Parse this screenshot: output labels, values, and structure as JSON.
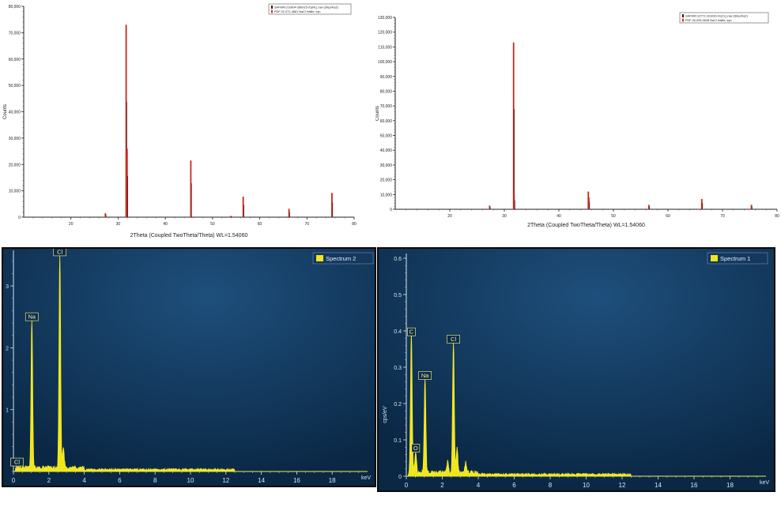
{
  "chart_data": [
    {
      "type": "line",
      "kind": "xrd",
      "ylabel": "Counts",
      "xlabel": "2Theta (Coupled TwoTheta/Theta) WL=1.54060",
      "xlim": [
        10,
        80
      ],
      "ylim": [
        0,
        80000
      ],
      "xticks": [
        20,
        30,
        40,
        50,
        60,
        70,
        80
      ],
      "yticks": [
        0,
        10000,
        20000,
        30000,
        40000,
        50000,
        60000,
        70000,
        80000
      ],
      "ytick_labels": [
        "0",
        "10,000",
        "20,000",
        "30,000",
        "40,000",
        "50,000",
        "60,000",
        "70,000",
        "80,000"
      ],
      "legend": [
        "SAFWR-210904-280915-01(RL).raw (Step/Ka2)",
        "PDF 01-071-4661 NaCl Halite, syn"
      ],
      "legend_colors": [
        "#4a0d0d",
        "#d23a2a"
      ],
      "peaks": [
        [
          27.3,
          1500
        ],
        [
          31.7,
          73000
        ],
        [
          31.9,
          26000
        ],
        [
          45.4,
          21500
        ],
        [
          53.9,
          500
        ],
        [
          56.5,
          7800
        ],
        [
          66.2,
          3200
        ],
        [
          75.3,
          9200
        ]
      ]
    },
    {
      "type": "line",
      "kind": "xrd",
      "ylabel": "Counts",
      "xlabel": "2Theta (Coupled TwoTheta/Theta) WL=1.54060",
      "xlim": [
        10,
        80
      ],
      "ylim": [
        0,
        130000
      ],
      "xticks": [
        20,
        30,
        40,
        50,
        60,
        70,
        80
      ],
      "yticks": [
        0,
        10000,
        20000,
        30000,
        40000,
        50000,
        60000,
        70000,
        80000,
        90000,
        100000,
        110000,
        120000,
        130000
      ],
      "ytick_labels": [
        "0",
        "10,000",
        "20,000",
        "30,000",
        "40,000",
        "50,000",
        "60,000",
        "70,000",
        "80,000",
        "90,000",
        "100,000",
        "110,000",
        "120,000",
        "130,000"
      ],
      "legend": [
        "SAFWR-12771-241030-01(CL).raw (Step/Ka2)",
        "PDF 00-005-0628 NaCl Halite, syn"
      ],
      "legend_colors": [
        "#4a0d0d",
        "#d23a2a"
      ],
      "peaks": [
        [
          27.3,
          2500
        ],
        [
          31.7,
          113000
        ],
        [
          31.8,
          10000
        ],
        [
          45.4,
          12000
        ],
        [
          45.5,
          8000
        ],
        [
          56.5,
          3000
        ],
        [
          66.2,
          7000
        ],
        [
          75.3,
          3000
        ]
      ]
    },
    {
      "type": "line",
      "kind": "eds",
      "legend": "Spectrum 2",
      "xlabel": "keV",
      "xlim": [
        0,
        20
      ],
      "ylim": [
        0,
        3.5
      ],
      "xticks": [
        0,
        2,
        4,
        6,
        8,
        10,
        12,
        14,
        16,
        18
      ],
      "yticks": [
        1,
        2,
        3
      ],
      "peaks": [
        [
          1.04,
          2.4
        ],
        [
          2.62,
          3.45
        ],
        [
          2.82,
          0.35
        ]
      ],
      "labels": [
        {
          "text": "Na",
          "x": 1.04,
          "y": 2.4
        },
        {
          "text": "Cl",
          "x": 2.62,
          "y": 3.45
        },
        {
          "text": "Cl",
          "x": 0.2,
          "y": 0.05
        }
      ]
    },
    {
      "type": "line",
      "kind": "eds",
      "legend": "Spectrum 1",
      "xlabel": "keV",
      "ylabel": "cps/eV",
      "xlim": [
        0,
        20
      ],
      "ylim": [
        0,
        0.6
      ],
      "xticks": [
        0,
        2,
        4,
        6,
        8,
        10,
        12,
        14,
        16,
        18
      ],
      "yticks": [
        0,
        0.1,
        0.2,
        0.3,
        0.4,
        0.5,
        0.6
      ],
      "peaks": [
        [
          0.28,
          0.38
        ],
        [
          0.52,
          0.06
        ],
        [
          1.04,
          0.26
        ],
        [
          2.62,
          0.36
        ],
        [
          2.82,
          0.07
        ],
        [
          3.3,
          0.03
        ],
        [
          2.3,
          0.03
        ]
      ],
      "labels": [
        {
          "text": "C",
          "x": 0.28,
          "y": 0.38
        },
        {
          "text": "O",
          "x": 0.52,
          "y": 0.06
        },
        {
          "text": "Na",
          "x": 1.04,
          "y": 0.26
        },
        {
          "text": "Cl",
          "x": 2.62,
          "y": 0.36
        }
      ]
    }
  ]
}
